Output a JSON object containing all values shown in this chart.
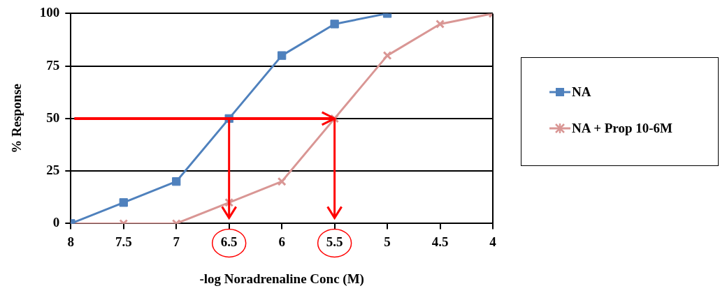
{
  "chart_data": {
    "type": "line",
    "xlabel": "-log Noradrenaline Conc (M)",
    "ylabel": "% Response",
    "xlim": [
      8,
      4
    ],
    "xticks": [
      8,
      {
        "value": 7.5,
        "label": "7.5"
      },
      7,
      {
        "value": 6.5,
        "label": "6.5"
      },
      6,
      {
        "value": 5.5,
        "label": "5.5"
      },
      5,
      {
        "value": 4.5,
        "label": "4.5"
      },
      4
    ],
    "ylim": [
      0,
      100
    ],
    "yticks": [
      0,
      25,
      50,
      75,
      100
    ],
    "grid": "y",
    "legend": "right",
    "line_style": "solid",
    "series": [
      {
        "name": "NA",
        "color": "#4f81bd",
        "marker": "square",
        "x": [
          8,
          7.5,
          7,
          6.5,
          6,
          5.5,
          5
        ],
        "values": [
          0,
          10,
          20,
          50,
          80,
          95,
          100
        ]
      },
      {
        "name": "NA + Prop 10-6M",
        "color": "#d99694",
        "marker": "cross",
        "x": [
          8,
          7.5,
          7,
          6.5,
          6,
          5.5,
          5,
          4.5,
          4
        ],
        "values": [
          0,
          0,
          0,
          10,
          20,
          50,
          80,
          95,
          100
        ]
      }
    ],
    "ref_lines": [
      {
        "axis": "y",
        "value": 50,
        "color": "#ff0000"
      }
    ]
  }
}
